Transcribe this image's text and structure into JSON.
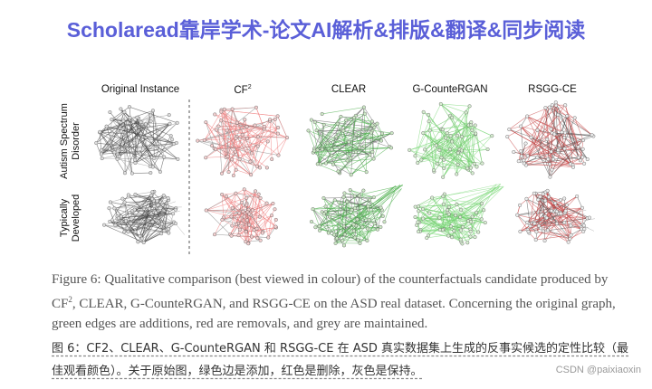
{
  "header": {
    "title": "Scholaread靠岸学术-论文AI解析&排版&翻译&同步阅读"
  },
  "figure": {
    "columns": [
      {
        "label": "Original Instance"
      },
      {
        "label": "CF",
        "sup": "2"
      },
      {
        "label": "CLEAR"
      },
      {
        "label": "G-CounteRGAN"
      },
      {
        "label": "RSGG-CE"
      }
    ],
    "rows": [
      {
        "lines": [
          "Autism Spectrum",
          "Disorder"
        ]
      },
      {
        "lines": [
          "Typically",
          "Developed"
        ]
      }
    ],
    "caption": {
      "lead": "Figure 6: Qualitative comparison (best viewed in colour) of the counterfactuals candidate produced by CF",
      "sup": "2",
      "rest": ", CLEAR, G-CounteRGAN, and RSGG-CE on the ASD real dataset. Concerning the original graph, green edges are additions, red are removals, and grey are maintained."
    }
  },
  "translation": "图 6：CF2、CLEAR、G-CounteRGAN 和 RSGG-CE 在 ASD 真实数据集上生成的反事实候选的定性比较（最佳观看颜色）。关于原始图，绿色边是添加，红色是删除，灰色是保持。",
  "watermark": "CSDN @paixiaoxin"
}
